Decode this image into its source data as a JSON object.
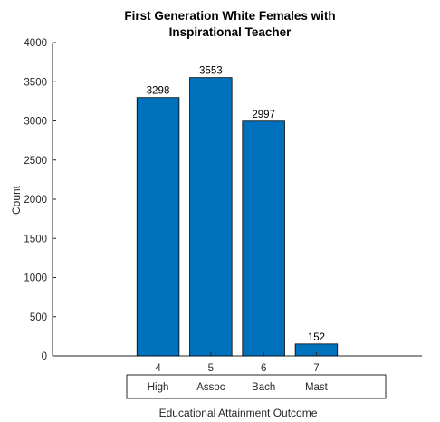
{
  "chart_data": {
    "type": "bar",
    "title": [
      "First Generation White Females with",
      "Inspirational Teacher"
    ],
    "xlabel": "Educational Attainment Outcome",
    "ylabel": "Count",
    "categories": [
      "4",
      "5",
      "6",
      "7"
    ],
    "category_names": [
      "High",
      "Assoc",
      "Bach",
      "Mast"
    ],
    "values": [
      3298,
      3553,
      2997,
      152
    ],
    "ylim": [
      0,
      4000
    ],
    "yticks": [
      0,
      500,
      1000,
      1500,
      2000,
      2500,
      3000,
      3500,
      4000
    ],
    "bar_color": "#0072BD",
    "grid": false,
    "legend": "none"
  }
}
